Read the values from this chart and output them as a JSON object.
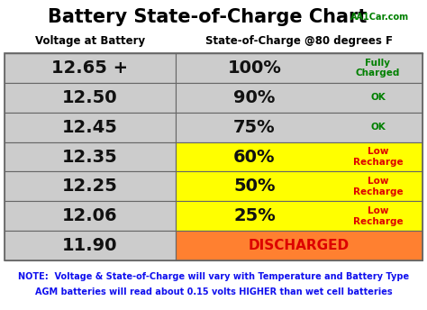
{
  "title": "Battery State-of-Charge Chart",
  "title_suffix": "AA1Car.com",
  "col1_header": "Voltage at Battery",
  "col2_header": "State-of-Charge @80 degrees F",
  "rows": [
    {
      "voltage": "12.65 +",
      "percent": "100%",
      "label": "Fully\nCharged",
      "label_color": "#008000",
      "right_bg": "#cccccc",
      "left_bg": "#cccccc"
    },
    {
      "voltage": "12.50",
      "percent": "90%",
      "label": "OK",
      "label_color": "#008000",
      "right_bg": "#cccccc",
      "left_bg": "#cccccc"
    },
    {
      "voltage": "12.45",
      "percent": "75%",
      "label": "OK",
      "label_color": "#008000",
      "right_bg": "#cccccc",
      "left_bg": "#cccccc"
    },
    {
      "voltage": "12.35",
      "percent": "60%",
      "label": "Low\nRecharge",
      "label_color": "#dd0000",
      "right_bg": "#ffff00",
      "left_bg": "#cccccc"
    },
    {
      "voltage": "12.25",
      "percent": "50%",
      "label": "Low\nRecharge",
      "label_color": "#dd0000",
      "right_bg": "#ffff00",
      "left_bg": "#cccccc"
    },
    {
      "voltage": "12.06",
      "percent": "25%",
      "label": "Low\nRecharge",
      "label_color": "#dd0000",
      "right_bg": "#ffff00",
      "left_bg": "#cccccc"
    },
    {
      "voltage": "11.90",
      "percent": "",
      "label": "DISCHARGED",
      "label_color": "#dd0000",
      "right_bg": "#ff8030",
      "left_bg": "#cccccc"
    }
  ],
  "note_line1": "NOTE:  Voltage & State-of-Charge will vary with Temperature and Battery Type",
  "note_line2": "AGM batteries will read about 0.15 volts HIGHER than wet cell batteries",
  "note_color": "#1010ee",
  "border_color": "#666666",
  "fig_bg": "#ffffff",
  "title_color": "#000000",
  "title_suffix_color": "#008000",
  "header_color": "#000000",
  "voltage_font_size": 14,
  "percent_font_size": 14,
  "label_font_size": 7.5,
  "header_font_size": 8.5,
  "title_font_size": 15,
  "title_suffix_font_size": 7,
  "note_font_size": 7
}
